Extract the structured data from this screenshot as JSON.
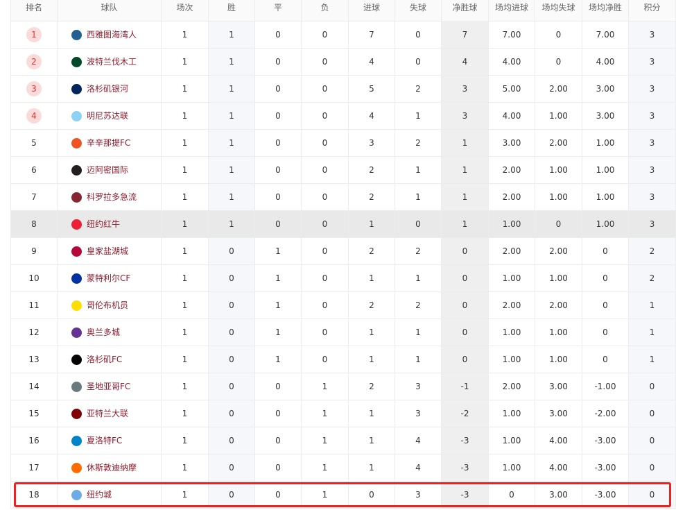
{
  "table": {
    "header": [
      "排名",
      "球队",
      "场次",
      "胜",
      "平",
      "负",
      "进球",
      "失球",
      "净胜球",
      "场均进球",
      "场均失球",
      "场均净胜",
      "积分"
    ],
    "rows": [
      [
        "1",
        "西雅图海湾人",
        "1",
        "1",
        "0",
        "0",
        "7",
        "0",
        "7",
        "7.00",
        "0",
        "7.00",
        "3"
      ],
      [
        "2",
        "波特兰伐木工",
        "1",
        "1",
        "0",
        "0",
        "4",
        "0",
        "4",
        "4.00",
        "0",
        "4.00",
        "3"
      ],
      [
        "3",
        "洛杉矶银河",
        "1",
        "1",
        "0",
        "0",
        "5",
        "2",
        "3",
        "5.00",
        "2.00",
        "3.00",
        "3"
      ],
      [
        "4",
        "明尼苏达联",
        "1",
        "1",
        "0",
        "0",
        "4",
        "1",
        "3",
        "4.00",
        "1.00",
        "3.00",
        "3"
      ],
      [
        "5",
        "辛辛那提FC",
        "1",
        "1",
        "0",
        "0",
        "3",
        "2",
        "1",
        "3.00",
        "2.00",
        "1.00",
        "3"
      ],
      [
        "6",
        "迈阿密国际",
        "1",
        "1",
        "0",
        "0",
        "2",
        "1",
        "1",
        "2.00",
        "1.00",
        "1.00",
        "3"
      ],
      [
        "7",
        "科罗拉多急流",
        "1",
        "1",
        "0",
        "0",
        "2",
        "1",
        "1",
        "2.00",
        "1.00",
        "1.00",
        "3"
      ],
      [
        "8",
        "纽约红牛",
        "1",
        "1",
        "0",
        "0",
        "1",
        "0",
        "1",
        "1.00",
        "0",
        "1.00",
        "3"
      ],
      [
        "9",
        "皇家盐湖城",
        "1",
        "0",
        "1",
        "0",
        "2",
        "2",
        "0",
        "2.00",
        "2.00",
        "0",
        "2"
      ],
      [
        "10",
        "蒙特利尔CF",
        "1",
        "0",
        "1",
        "0",
        "1",
        "1",
        "0",
        "1.00",
        "1.00",
        "0",
        "2"
      ],
      [
        "11",
        "哥伦布机员",
        "1",
        "0",
        "1",
        "0",
        "2",
        "2",
        "0",
        "2.00",
        "2.00",
        "0",
        "1"
      ],
      [
        "12",
        "奥兰多城",
        "1",
        "0",
        "1",
        "0",
        "1",
        "1",
        "0",
        "1.00",
        "1.00",
        "0",
        "1"
      ],
      [
        "13",
        "洛杉矶FC",
        "1",
        "0",
        "1",
        "0",
        "1",
        "1",
        "0",
        "1.00",
        "1.00",
        "0",
        "1"
      ],
      [
        "14",
        "圣地亚哥FC",
        "1",
        "0",
        "0",
        "1",
        "2",
        "3",
        "-1",
        "2.00",
        "3.00",
        "-1.00",
        "0"
      ],
      [
        "15",
        "亚特兰大联",
        "1",
        "0",
        "0",
        "1",
        "1",
        "3",
        "-2",
        "1.00",
        "3.00",
        "-2.00",
        "0"
      ],
      [
        "16",
        "夏洛特FC",
        "1",
        "0",
        "0",
        "1",
        "1",
        "4",
        "-3",
        "1.00",
        "4.00",
        "-3.00",
        "0"
      ],
      [
        "17",
        "休斯敦迪纳摩",
        "1",
        "0",
        "0",
        "1",
        "1",
        "4",
        "-3",
        "1.00",
        "4.00",
        "-3.00",
        "0"
      ],
      [
        "18",
        "纽约城",
        "1",
        "0",
        "0",
        "1",
        "0",
        "3",
        "-3",
        "0",
        "3.00",
        "-3.00",
        "0"
      ]
    ]
  }
}
